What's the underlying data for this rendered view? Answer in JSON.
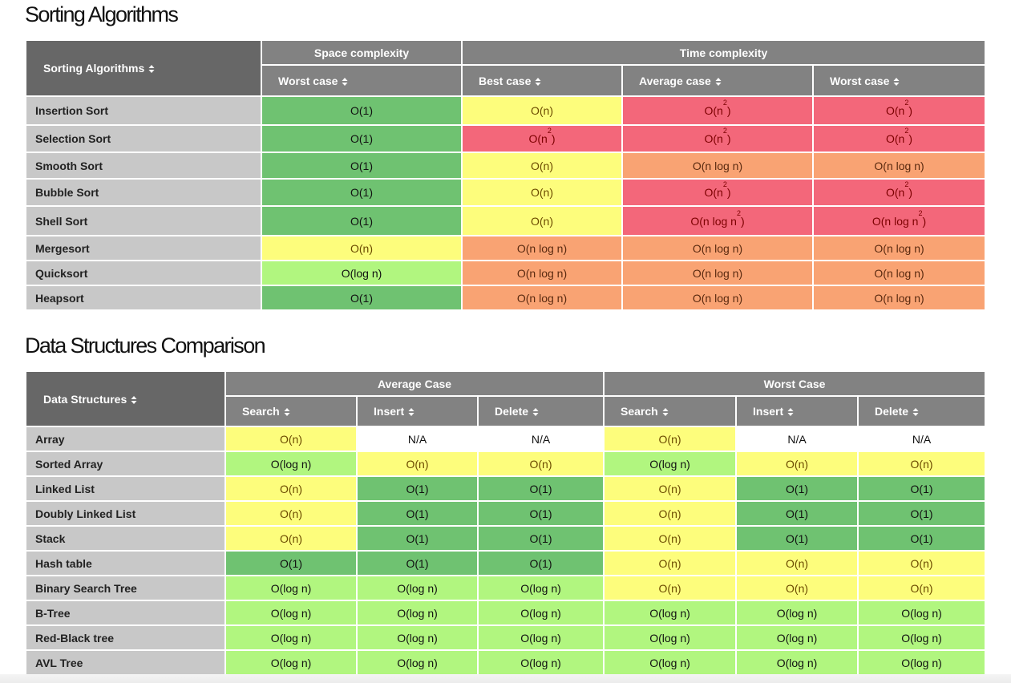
{
  "sorting": {
    "title": "Sorting Algorithms",
    "col_name": "Sorting Algorithms",
    "group_space": "Space complexity",
    "group_time": "Time complexity",
    "col_space_worst": "Worst case",
    "col_best": "Best case",
    "col_avg": "Average case",
    "col_worst": "Worst case",
    "row_heights": [
      36,
      34,
      33,
      34,
      37,
      31,
      31,
      31
    ],
    "rows": [
      {
        "name": "Insertion Sort",
        "cells": [
          {
            "t": "O(1)",
            "c": "dg"
          },
          {
            "t": "O(n)",
            "c": "y"
          },
          {
            "t": "O(n",
            "s": "2",
            "c": "r"
          },
          {
            "t": "O(n",
            "s": "2",
            "c": "r"
          }
        ]
      },
      {
        "name": "Selection Sort",
        "cells": [
          {
            "t": "O(1)",
            "c": "dg"
          },
          {
            "t": "O(n",
            "s": "2",
            "c": "r"
          },
          {
            "t": "O(n",
            "s": "2",
            "c": "r"
          },
          {
            "t": "O(n",
            "s": "2",
            "c": "r"
          }
        ]
      },
      {
        "name": "Smooth Sort",
        "cells": [
          {
            "t": "O(1)",
            "c": "dg"
          },
          {
            "t": "O(n)",
            "c": "y"
          },
          {
            "t": "O(n log n)",
            "c": "o"
          },
          {
            "t": "O(n log n)",
            "c": "o"
          }
        ]
      },
      {
        "name": "Bubble Sort",
        "cells": [
          {
            "t": "O(1)",
            "c": "dg"
          },
          {
            "t": "O(n)",
            "c": "y"
          },
          {
            "t": "O(n",
            "s": "2",
            "c": "r"
          },
          {
            "t": "O(n",
            "s": "2",
            "c": "r"
          }
        ]
      },
      {
        "name": "Shell Sort",
        "cells": [
          {
            "t": "O(1)",
            "c": "dg"
          },
          {
            "t": "O(n)",
            "c": "y"
          },
          {
            "t": "O(n log n",
            "s": "2",
            "c": "r"
          },
          {
            "t": "O(n log n",
            "s": "2",
            "c": "r"
          }
        ]
      },
      {
        "name": "Mergesort",
        "cells": [
          {
            "t": "O(n)",
            "c": "y"
          },
          {
            "t": "O(n log n)",
            "c": "o"
          },
          {
            "t": "O(n log n)",
            "c": "o"
          },
          {
            "t": "O(n log n)",
            "c": "o"
          }
        ]
      },
      {
        "name": "Quicksort",
        "cells": [
          {
            "t": "O(log n)",
            "c": "lg"
          },
          {
            "t": "O(n log n)",
            "c": "o"
          },
          {
            "t": "O(n log n)",
            "c": "o"
          },
          {
            "t": "O(n log n)",
            "c": "o"
          }
        ]
      },
      {
        "name": "Heapsort",
        "cells": [
          {
            "t": "O(1)",
            "c": "dg"
          },
          {
            "t": "O(n log n)",
            "c": "o"
          },
          {
            "t": "O(n log n)",
            "c": "o"
          },
          {
            "t": "O(n log n)",
            "c": "o"
          }
        ]
      }
    ]
  },
  "structures": {
    "title": "Data Structures Comparison",
    "col_name": "Data Structures",
    "group_avg": "Average Case",
    "group_worst": "Worst Case",
    "cols": [
      "Search",
      "Insert",
      "Delete",
      "Search",
      "Insert",
      "Delete"
    ],
    "rows": [
      {
        "name": "Array",
        "cells": [
          {
            "t": "O(n)",
            "c": "y"
          },
          {
            "t": "N/A",
            "c": "w"
          },
          {
            "t": "N/A",
            "c": "w"
          },
          {
            "t": "O(n)",
            "c": "y"
          },
          {
            "t": "N/A",
            "c": "w"
          },
          {
            "t": "N/A",
            "c": "w"
          }
        ]
      },
      {
        "name": "Sorted Array",
        "cells": [
          {
            "t": "O(log n)",
            "c": "lg"
          },
          {
            "t": "O(n)",
            "c": "y"
          },
          {
            "t": "O(n)",
            "c": "y"
          },
          {
            "t": "O(log n)",
            "c": "lg"
          },
          {
            "t": "O(n)",
            "c": "y"
          },
          {
            "t": "O(n)",
            "c": "y"
          }
        ]
      },
      {
        "name": "Linked List",
        "cells": [
          {
            "t": "O(n)",
            "c": "y"
          },
          {
            "t": "O(1)",
            "c": "dg"
          },
          {
            "t": "O(1)",
            "c": "dg"
          },
          {
            "t": "O(n)",
            "c": "y"
          },
          {
            "t": "O(1)",
            "c": "dg"
          },
          {
            "t": "O(1)",
            "c": "dg"
          }
        ]
      },
      {
        "name": "Doubly Linked List",
        "cells": [
          {
            "t": "O(n)",
            "c": "y"
          },
          {
            "t": "O(1)",
            "c": "dg"
          },
          {
            "t": "O(1)",
            "c": "dg"
          },
          {
            "t": "O(n)",
            "c": "y"
          },
          {
            "t": "O(1)",
            "c": "dg"
          },
          {
            "t": "O(1)",
            "c": "dg"
          }
        ]
      },
      {
        "name": "Stack",
        "cells": [
          {
            "t": "O(n)",
            "c": "y"
          },
          {
            "t": "O(1)",
            "c": "dg"
          },
          {
            "t": "O(1)",
            "c": "dg"
          },
          {
            "t": "O(n)",
            "c": "y"
          },
          {
            "t": "O(1)",
            "c": "dg"
          },
          {
            "t": "O(1)",
            "c": "dg"
          }
        ]
      },
      {
        "name": "Hash table",
        "cells": [
          {
            "t": "O(1)",
            "c": "dg"
          },
          {
            "t": "O(1)",
            "c": "dg"
          },
          {
            "t": "O(1)",
            "c": "dg"
          },
          {
            "t": "O(n)",
            "c": "y"
          },
          {
            "t": "O(n)",
            "c": "y"
          },
          {
            "t": "O(n)",
            "c": "y"
          }
        ]
      },
      {
        "name": "Binary Search Tree",
        "cells": [
          {
            "t": "O(log n)",
            "c": "lg"
          },
          {
            "t": "O(log n)",
            "c": "lg"
          },
          {
            "t": "O(log n)",
            "c": "lg"
          },
          {
            "t": "O(n)",
            "c": "y"
          },
          {
            "t": "O(n)",
            "c": "y"
          },
          {
            "t": "O(n)",
            "c": "y"
          }
        ]
      },
      {
        "name": "B-Tree",
        "cells": [
          {
            "t": "O(log n)",
            "c": "lg"
          },
          {
            "t": "O(log n)",
            "c": "lg"
          },
          {
            "t": "O(log n)",
            "c": "lg"
          },
          {
            "t": "O(log n)",
            "c": "lg"
          },
          {
            "t": "O(log n)",
            "c": "lg"
          },
          {
            "t": "O(log n)",
            "c": "lg"
          }
        ]
      },
      {
        "name": "Red-Black tree",
        "cells": [
          {
            "t": "O(log n)",
            "c": "lg"
          },
          {
            "t": "O(log n)",
            "c": "lg"
          },
          {
            "t": "O(log n)",
            "c": "lg"
          },
          {
            "t": "O(log n)",
            "c": "lg"
          },
          {
            "t": "O(log n)",
            "c": "lg"
          },
          {
            "t": "O(log n)",
            "c": "lg"
          }
        ]
      },
      {
        "name": "AVL Tree",
        "cells": [
          {
            "t": "O(log n)",
            "c": "lg"
          },
          {
            "t": "O(log n)",
            "c": "lg"
          },
          {
            "t": "O(log n)",
            "c": "lg"
          },
          {
            "t": "O(log n)",
            "c": "lg"
          },
          {
            "t": "O(log n)",
            "c": "lg"
          },
          {
            "t": "O(log n)",
            "c": "lg"
          }
        ]
      }
    ]
  },
  "colors": {
    "dg": "#6fc271",
    "lg": "#b1f67f",
    "y": "#fdfd7c",
    "o": "#f9a373",
    "r": "#f3677a",
    "w": "#ffffff",
    "header": "#828282",
    "header_dark": "#676767",
    "name_cell": "#c8c8c8"
  },
  "icons": {
    "sort": "sort-arrows-icon"
  }
}
